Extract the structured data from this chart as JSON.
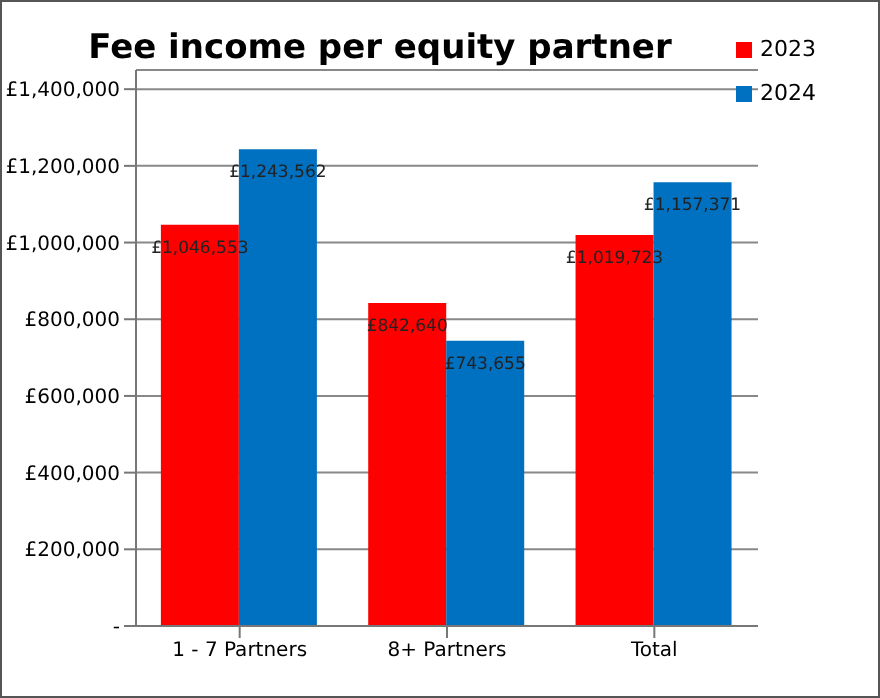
{
  "chart_data": {
    "type": "bar",
    "title": "Fee income per equity partner",
    "categories": [
      "1 - 7 Partners",
      "8+ Partners",
      "Total"
    ],
    "series": [
      {
        "name": "2023",
        "color": "#ff0000",
        "values": [
          1046553,
          842640,
          1019723
        ],
        "value_labels": [
          "£1,046,553",
          "£842,640",
          "£1,019,723"
        ]
      },
      {
        "name": "2024",
        "color": "#0070c0",
        "values": [
          1243562,
          743655,
          1157371
        ],
        "value_labels": [
          "£1,243,562",
          "£743,655",
          "£1,157,371"
        ]
      }
    ],
    "ylim": [
      0,
      1450000
    ],
    "yticks": [
      {
        "value": 0,
        "label": "-"
      },
      {
        "value": 200000,
        "label": "£200,000"
      },
      {
        "value": 400000,
        "label": "£400,000"
      },
      {
        "value": 600000,
        "label": "£600,000"
      },
      {
        "value": 800000,
        "label": "£800,000"
      },
      {
        "value": 1000000,
        "label": "£1,000,000"
      },
      {
        "value": 1200000,
        "label": "£1,200,000"
      },
      {
        "value": 1400000,
        "label": "£1,400,000"
      }
    ],
    "grid": "y",
    "legend": "top right"
  }
}
